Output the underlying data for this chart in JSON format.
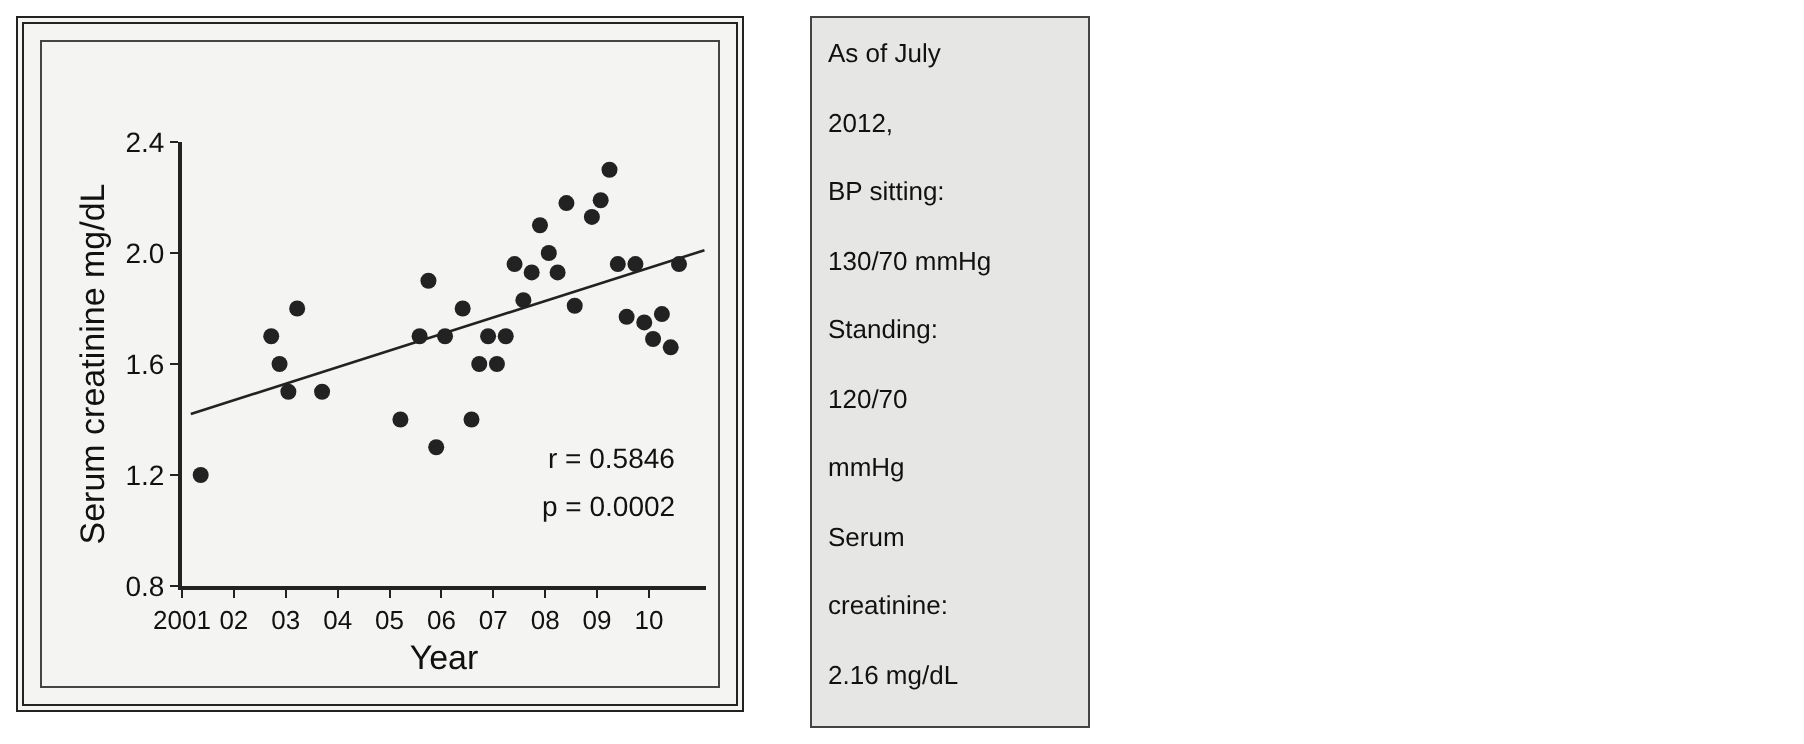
{
  "chart_data": [
    {
      "type": "scatter",
      "xlabel": "Year",
      "ylabel": "Serum creatinine mg/dL",
      "xlim": [
        2001,
        2011.1
      ],
      "xticks": [
        {
          "value": 2001,
          "label": "2001"
        },
        {
          "value": 2002,
          "label": "02"
        },
        {
          "value": 2003,
          "label": "03"
        },
        {
          "value": 2004,
          "label": "04"
        },
        {
          "value": 2005,
          "label": "05"
        },
        {
          "value": 2006,
          "label": "06"
        },
        {
          "value": 2007,
          "label": "07"
        },
        {
          "value": 2008,
          "label": "08"
        },
        {
          "value": 2009,
          "label": "09"
        },
        {
          "value": 2010,
          "label": "10"
        }
      ],
      "ylim": [
        0.8,
        2.4
      ],
      "yticks": [
        {
          "value": 0.8,
          "label": "0.8"
        },
        {
          "value": 1.2,
          "label": "1.2"
        },
        {
          "value": 1.6,
          "label": "1.6"
        },
        {
          "value": 2.0,
          "label": "2.0"
        },
        {
          "value": 2.4,
          "label": "2.4"
        }
      ],
      "series": [
        {
          "type": "scatter",
          "marker": "circle",
          "color": "#222222",
          "x": [
            2001.36,
            2002.72,
            2002.88,
            2003.05,
            2003.22,
            2003.7,
            2005.21,
            2005.58,
            2005.75,
            2005.9,
            2006.07,
            2006.41,
            2006.58,
            2006.73,
            2006.9,
            2007.07,
            2007.24,
            2007.41,
            2007.58,
            2007.74,
            2007.9,
            2008.07,
            2008.24,
            2008.41,
            2008.57,
            2008.9,
            2009.07,
            2009.24,
            2009.4,
            2009.57,
            2009.74,
            2009.91,
            2010.08,
            2010.25,
            2010.42,
            2010.58
          ],
          "values": [
            1.2,
            1.7,
            1.6,
            1.5,
            1.8,
            1.5,
            1.4,
            1.7,
            1.9,
            1.3,
            1.7,
            1.8,
            1.4,
            1.6,
            1.7,
            1.6,
            1.7,
            1.96,
            1.83,
            1.93,
            2.1,
            2.0,
            1.93,
            2.18,
            1.81,
            2.13,
            2.19,
            2.3,
            1.96,
            1.77,
            1.96,
            1.75,
            1.69,
            1.78,
            1.66,
            1.96
          ]
        },
        {
          "type": "line",
          "marker": "none",
          "color": "#222222",
          "x": [
            2001.17,
            2011.07
          ],
          "values": [
            1.42,
            2.01
          ]
        }
      ],
      "annotations": [
        "r = 0.5846",
        "p = 0.0002"
      ]
    },
    {
      "type": "other",
      "annotations": [
        "As of July",
        "2012,",
        "BP sitting:",
        "130/70 mmHg",
        "Standing:",
        "120/70",
        "mmHg",
        "Serum",
        "creatinine:",
        "2.16 mg/dL"
      ]
    }
  ]
}
